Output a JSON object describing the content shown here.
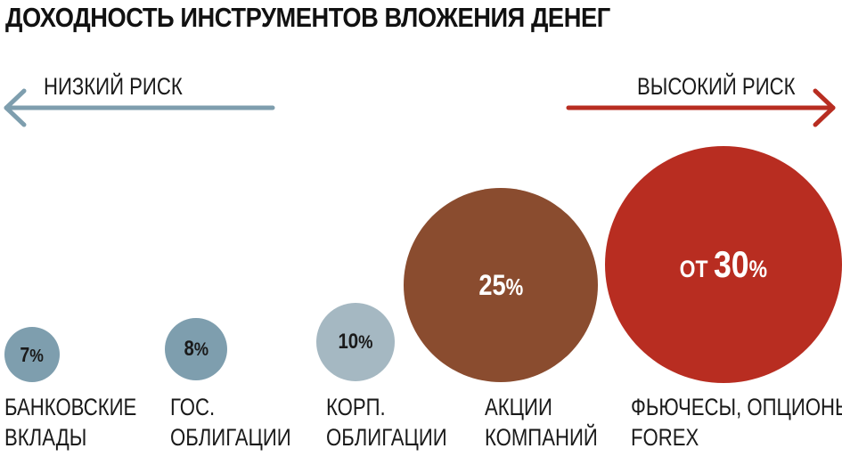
{
  "title": "ДОХОДНОСТЬ ИНСТРУМЕНТОВ ВЛОЖЕНИЯ ДЕНЕГ",
  "risk": {
    "low_label": "НИЗКИЙ РИСК",
    "high_label": "ВЫСОКИЙ РИСК",
    "low_color": "#7e9eae",
    "high_color": "#b82d21"
  },
  "instruments": [
    {
      "value": "7",
      "unit": "%",
      "label_lines": [
        "БАНКОВСКИЕ",
        "ВКЛАДЫ"
      ],
      "color": "#7e9eae"
    },
    {
      "value": "8",
      "unit": "%",
      "label_lines": [
        "ГОС.",
        "ОБЛИГАЦИИ"
      ],
      "color": "#7e9eae"
    },
    {
      "value": "10",
      "unit": "%",
      "label_lines": [
        "КОРП.",
        "ОБЛИГАЦИИ"
      ],
      "color": "#a5b8c2"
    },
    {
      "value": "25",
      "unit": "%",
      "label_lines": [
        "АКЦИИ",
        "КОМПАНИЙ"
      ],
      "color": "#8a4c2f"
    },
    {
      "prefix": "ОТ",
      "value": "30",
      "unit": "%",
      "label_lines": [
        "ФЬЮЧЕСЫ, ОПЦИОНЫ,",
        "FOREX"
      ],
      "color": "#b82d21"
    }
  ]
}
